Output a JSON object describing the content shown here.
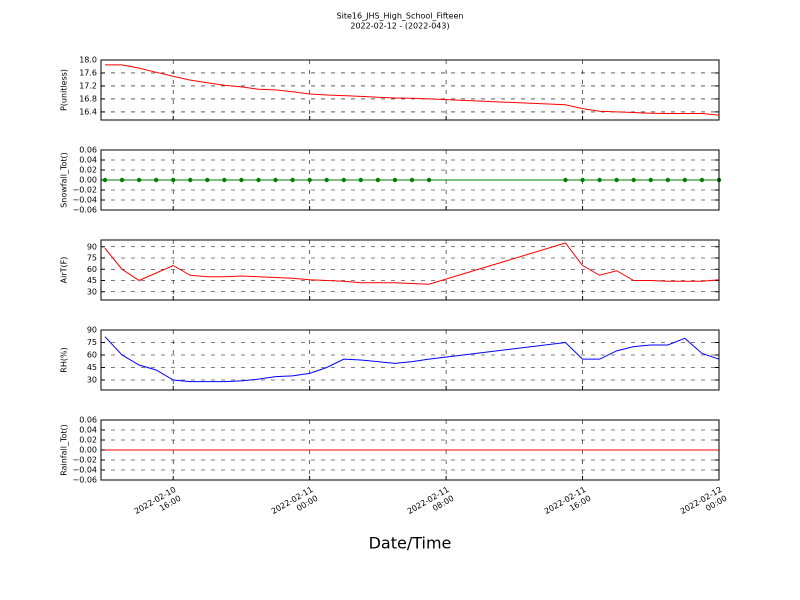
{
  "title": "Site16_JHS_High_School_Fifteen",
  "subtitle": "2022-02-12 - (2022-043)",
  "xlabel": "Date/Time",
  "xlim": [
    "2022-02-10 11:46",
    "2022-02-12 00:00"
  ],
  "xticks": [
    {
      "value": "2022-02-10 16:00",
      "label": "2022-02-10\n16:00"
    },
    {
      "value": "2022-02-11 00:00",
      "label": "2022-02-11\n00:00"
    },
    {
      "value": "2022-02-11 08:00",
      "label": "2022-02-11\n08:00"
    },
    {
      "value": "2022-02-11 16:00",
      "label": "2022-02-11\n16:00"
    },
    {
      "value": "2022-02-12 00:00",
      "label": "2022-02-12\n00:00"
    }
  ],
  "grid": true,
  "chart_data": [
    {
      "type": "line",
      "ylabel": "P(unitless)",
      "color": "#ff0000",
      "x": [
        "2022-02-10 12:00",
        "2022-02-10 13:00",
        "2022-02-10 14:00",
        "2022-02-10 15:00",
        "2022-02-10 16:00",
        "2022-02-10 17:00",
        "2022-02-10 18:00",
        "2022-02-10 19:00",
        "2022-02-10 20:00",
        "2022-02-10 21:00",
        "2022-02-10 22:00",
        "2022-02-10 23:00",
        "2022-02-11 00:00",
        "2022-02-11 01:00",
        "2022-02-11 02:00",
        "2022-02-11 03:00",
        "2022-02-11 04:00",
        "2022-02-11 05:00",
        "2022-02-11 06:00",
        "2022-02-11 07:00",
        "2022-02-11 15:00",
        "2022-02-11 16:00",
        "2022-02-11 17:00",
        "2022-02-11 18:00",
        "2022-02-11 19:00",
        "2022-02-11 20:00",
        "2022-02-11 21:00",
        "2022-02-11 22:00",
        "2022-02-11 23:00",
        "2022-02-12 00:00"
      ],
      "values": [
        17.85,
        17.85,
        17.75,
        17.62,
        17.5,
        17.38,
        17.3,
        17.22,
        17.17,
        17.1,
        17.08,
        17.02,
        16.95,
        16.92,
        16.9,
        16.88,
        16.85,
        16.83,
        16.82,
        16.8,
        16.62,
        16.5,
        16.42,
        16.4,
        16.38,
        16.36,
        16.35,
        16.35,
        16.35,
        16.3
      ],
      "ylim": [
        16.15,
        18.0
      ],
      "yticks": [
        16.4,
        16.8,
        17.2,
        17.6,
        {
          "value": 18,
          "label": "18.0"
        }
      ]
    },
    {
      "type": "line",
      "ylabel": "Snowfall_Tot()",
      "color": "#008000",
      "marker": true,
      "x": [
        "2022-02-10 12:00",
        "2022-02-10 13:00",
        "2022-02-10 14:00",
        "2022-02-10 15:00",
        "2022-02-10 16:00",
        "2022-02-10 17:00",
        "2022-02-10 18:00",
        "2022-02-10 19:00",
        "2022-02-10 20:00",
        "2022-02-10 21:00",
        "2022-02-10 22:00",
        "2022-02-10 23:00",
        "2022-02-11 00:00",
        "2022-02-11 01:00",
        "2022-02-11 02:00",
        "2022-02-11 03:00",
        "2022-02-11 04:00",
        "2022-02-11 05:00",
        "2022-02-11 06:00",
        "2022-02-11 07:00",
        "2022-02-11 15:00",
        "2022-02-11 16:00",
        "2022-02-11 17:00",
        "2022-02-11 18:00",
        "2022-02-11 19:00",
        "2022-02-11 20:00",
        "2022-02-11 21:00",
        "2022-02-11 22:00",
        "2022-02-11 23:00",
        "2022-02-12 00:00"
      ],
      "values": [
        0,
        0,
        0,
        0,
        0,
        0,
        0,
        0,
        0,
        0,
        0,
        0,
        0,
        0,
        0,
        0,
        0,
        0,
        0,
        0,
        0,
        0,
        0,
        0,
        0,
        0,
        0,
        0,
        0,
        0
      ],
      "ylim": [
        -0.06,
        0.06
      ],
      "yticks": [
        {
          "value": -0.06,
          "label": "−0.06"
        },
        {
          "value": -0.04,
          "label": "−0.04"
        },
        {
          "value": -0.02,
          "label": "−0.02"
        },
        {
          "value": 0,
          "label": "0.00"
        },
        0.02,
        0.04,
        0.06
      ]
    },
    {
      "type": "line",
      "ylabel": "AirT(F)",
      "color": "#ff0000",
      "x": [
        "2022-02-10 12:00",
        "2022-02-10 13:00",
        "2022-02-10 14:00",
        "2022-02-10 15:00",
        "2022-02-10 16:00",
        "2022-02-10 17:00",
        "2022-02-10 18:00",
        "2022-02-10 19:00",
        "2022-02-10 20:00",
        "2022-02-10 21:00",
        "2022-02-10 22:00",
        "2022-02-10 23:00",
        "2022-02-11 00:00",
        "2022-02-11 01:00",
        "2022-02-11 02:00",
        "2022-02-11 03:00",
        "2022-02-11 04:00",
        "2022-02-11 05:00",
        "2022-02-11 06:00",
        "2022-02-11 07:00",
        "2022-02-11 15:00",
        "2022-02-11 16:00",
        "2022-02-11 17:00",
        "2022-02-11 18:00",
        "2022-02-11 19:00",
        "2022-02-11 20:00",
        "2022-02-11 21:00",
        "2022-02-11 22:00",
        "2022-02-11 23:00",
        "2022-02-12 00:00"
      ],
      "values": [
        88,
        60,
        45,
        55,
        65,
        52,
        50,
        50,
        51,
        50,
        49,
        48,
        46,
        45,
        44,
        42,
        42,
        42,
        41,
        40,
        95,
        65,
        52,
        58,
        45,
        45,
        44,
        44,
        44,
        46
      ],
      "ylim": [
        19,
        99
      ],
      "yticks": [
        30,
        45,
        60,
        75,
        90
      ]
    },
    {
      "type": "line",
      "ylabel": "RH(%)",
      "color": "#0000ff",
      "x": [
        "2022-02-10 12:00",
        "2022-02-10 13:00",
        "2022-02-10 14:00",
        "2022-02-10 15:00",
        "2022-02-10 16:00",
        "2022-02-10 17:00",
        "2022-02-10 18:00",
        "2022-02-10 19:00",
        "2022-02-10 20:00",
        "2022-02-10 21:00",
        "2022-02-10 22:00",
        "2022-02-10 23:00",
        "2022-02-11 00:00",
        "2022-02-11 01:00",
        "2022-02-11 02:00",
        "2022-02-11 03:00",
        "2022-02-11 04:00",
        "2022-02-11 05:00",
        "2022-02-11 06:00",
        "2022-02-11 07:00",
        "2022-02-11 15:00",
        "2022-02-11 16:00",
        "2022-02-11 17:00",
        "2022-02-11 18:00",
        "2022-02-11 19:00",
        "2022-02-11 20:00",
        "2022-02-11 21:00",
        "2022-02-11 22:00",
        "2022-02-11 23:00",
        "2022-02-12 00:00"
      ],
      "values": [
        82,
        60,
        48,
        42,
        30,
        28,
        28,
        28,
        29,
        31,
        34,
        35,
        38,
        45,
        55,
        54,
        52,
        50,
        52,
        55,
        75,
        55,
        55,
        65,
        70,
        72,
        72,
        80,
        62,
        55
      ],
      "ylim": [
        18,
        90
      ],
      "yticks": [
        30,
        45,
        60,
        75,
        90
      ]
    },
    {
      "type": "line",
      "ylabel": "Rainfall_Tot()",
      "color": "#ff0000",
      "x": [
        "2022-02-10 12:00",
        "2022-02-12 00:00"
      ],
      "values": [
        0,
        0
      ],
      "ylim": [
        -0.06,
        0.06
      ],
      "yticks": [
        {
          "value": -0.06,
          "label": "−0.06"
        },
        {
          "value": -0.04,
          "label": "−0.04"
        },
        {
          "value": -0.02,
          "label": "−0.02"
        },
        {
          "value": 0,
          "label": "0.00"
        },
        0.02,
        0.04,
        0.06
      ]
    }
  ]
}
